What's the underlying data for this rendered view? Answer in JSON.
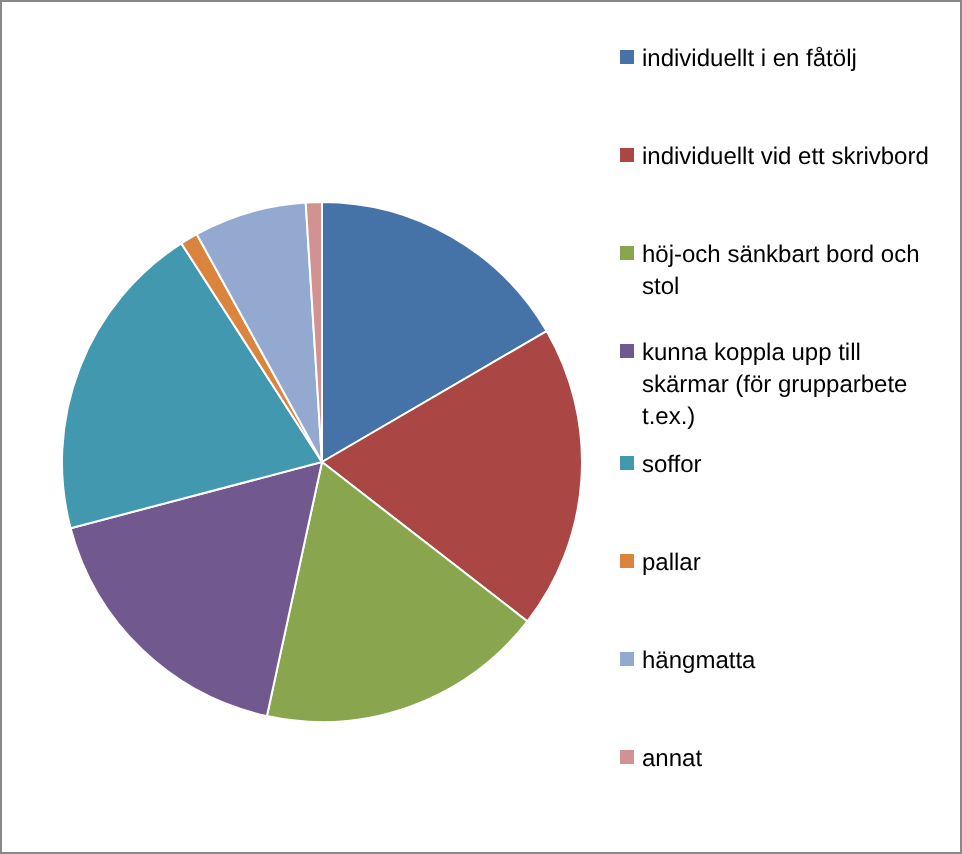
{
  "chart_data": {
    "type": "pie",
    "categories": [
      "individuellt i en fåtölj",
      "individuellt vid ett skrivbord",
      "höj-och sänkbart bord och stol",
      "kunna koppla upp till skärmar (för grupparbete t.ex.)",
      "soffor",
      "pallar",
      "hängmatta",
      "annat"
    ],
    "values": [
      16.6,
      18.9,
      17.9,
      17.5,
      20,
      1.1,
      7,
      1
    ],
    "colors": [
      "#4572a7",
      "#aa4643",
      "#89a54e",
      "#71588f",
      "#4198af",
      "#db843d",
      "#93a9cf",
      "#d19392"
    ],
    "legend": "right"
  }
}
